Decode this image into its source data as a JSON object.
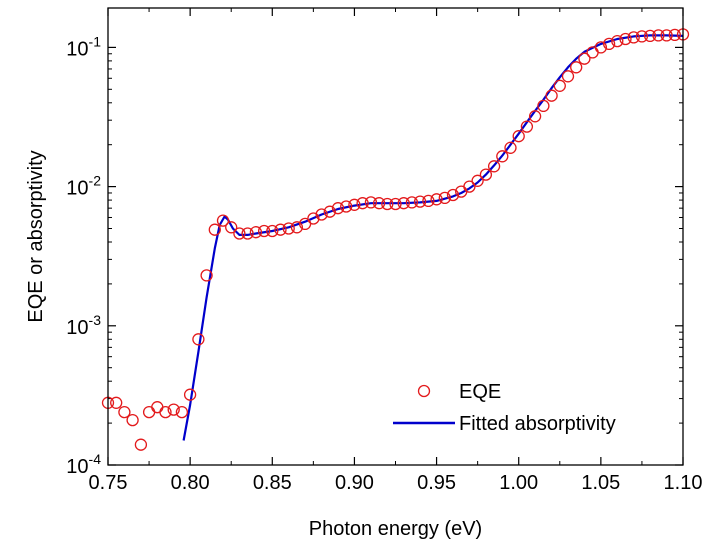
{
  "chart_data": {
    "type": "scatter",
    "xlabel": "Photon energy (eV)",
    "ylabel": "EQE or absorptivity",
    "xlim": [
      0.75,
      1.1
    ],
    "ylim": [
      0.0001,
      0.2
    ],
    "yscale": "log",
    "grid": false,
    "legend_position": "bottom-right",
    "x_ticks": [
      {
        "value": 0.75,
        "label": "0.75"
      },
      {
        "value": 0.8,
        "label": "0.80"
      },
      {
        "value": 0.85,
        "label": "0.85"
      },
      {
        "value": 0.9,
        "label": "0.90"
      },
      {
        "value": 0.95,
        "label": "0.95"
      },
      {
        "value": 1.0,
        "label": "1.00"
      },
      {
        "value": 1.05,
        "label": "1.05"
      },
      {
        "value": 1.1,
        "label": "1.10"
      }
    ],
    "y_ticks": [
      {
        "value": 0.0001,
        "base": "10",
        "exp": "-4"
      },
      {
        "value": 0.001,
        "base": "10",
        "exp": "-3"
      },
      {
        "value": 0.01,
        "base": "10",
        "exp": "-2"
      },
      {
        "value": 0.1,
        "base": "10",
        "exp": "-1"
      }
    ],
    "series": [
      {
        "name": "EQE",
        "kind": "markers",
        "color": "#e31a1c",
        "x": [
          0.75,
          0.755,
          0.76,
          0.765,
          0.77,
          0.775,
          0.78,
          0.785,
          0.79,
          0.795,
          0.8,
          0.805,
          0.81,
          0.815,
          0.82,
          0.825,
          0.83,
          0.835,
          0.84,
          0.845,
          0.85,
          0.855,
          0.86,
          0.865,
          0.87,
          0.875,
          0.88,
          0.885,
          0.89,
          0.895,
          0.9,
          0.905,
          0.91,
          0.915,
          0.92,
          0.925,
          0.93,
          0.935,
          0.94,
          0.945,
          0.95,
          0.955,
          0.96,
          0.965,
          0.97,
          0.975,
          0.98,
          0.985,
          0.99,
          0.995,
          1.0,
          1.005,
          1.01,
          1.015,
          1.02,
          1.025,
          1.03,
          1.035,
          1.04,
          1.045,
          1.05,
          1.055,
          1.06,
          1.065,
          1.07,
          1.075,
          1.08,
          1.085,
          1.09,
          1.095,
          1.1
        ],
        "y": [
          0.00028,
          0.00028,
          0.00024,
          0.00021,
          0.00014,
          0.00024,
          0.00026,
          0.00024,
          0.00025,
          0.00024,
          0.00032,
          0.0008,
          0.0023,
          0.0049,
          0.0057,
          0.0051,
          0.0046,
          0.0046,
          0.0047,
          0.0048,
          0.0048,
          0.0049,
          0.005,
          0.0051,
          0.0054,
          0.0059,
          0.0063,
          0.0066,
          0.007,
          0.0072,
          0.0074,
          0.0076,
          0.0077,
          0.0076,
          0.0075,
          0.0075,
          0.0076,
          0.0077,
          0.0078,
          0.0079,
          0.0081,
          0.0083,
          0.0087,
          0.0092,
          0.01,
          0.011,
          0.0122,
          0.014,
          0.0165,
          0.019,
          0.023,
          0.027,
          0.032,
          0.038,
          0.045,
          0.053,
          0.062,
          0.072,
          0.083,
          0.092,
          0.1,
          0.106,
          0.111,
          0.115,
          0.118,
          0.12,
          0.121,
          0.122,
          0.122,
          0.123,
          0.124
        ]
      },
      {
        "name": "Fitted absorptivity",
        "kind": "line",
        "color": "#0000cc",
        "x": [
          0.796,
          0.8,
          0.805,
          0.81,
          0.815,
          0.818,
          0.821,
          0.823,
          0.826,
          0.83,
          0.835,
          0.84,
          0.85,
          0.86,
          0.87,
          0.88,
          0.89,
          0.9,
          0.91,
          0.92,
          0.93,
          0.94,
          0.95,
          0.96,
          0.965,
          0.97,
          0.975,
          0.98,
          0.985,
          0.99,
          0.995,
          1.0,
          1.005,
          1.01,
          1.015,
          1.02,
          1.025,
          1.03,
          1.035,
          1.04,
          1.05,
          1.06,
          1.07,
          1.08,
          1.09,
          1.1
        ],
        "y": [
          0.00015,
          0.00027,
          0.00065,
          0.0016,
          0.0036,
          0.0053,
          0.0061,
          0.0058,
          0.005,
          0.0045,
          0.0045,
          0.0046,
          0.0048,
          0.0051,
          0.0056,
          0.0063,
          0.0069,
          0.0073,
          0.0076,
          0.0076,
          0.0076,
          0.0077,
          0.0079,
          0.0085,
          0.009,
          0.0097,
          0.0107,
          0.0122,
          0.0142,
          0.0167,
          0.02,
          0.024,
          0.029,
          0.035,
          0.042,
          0.051,
          0.061,
          0.072,
          0.083,
          0.093,
          0.106,
          0.115,
          0.12,
          0.122,
          0.122,
          0.121
        ]
      }
    ]
  }
}
